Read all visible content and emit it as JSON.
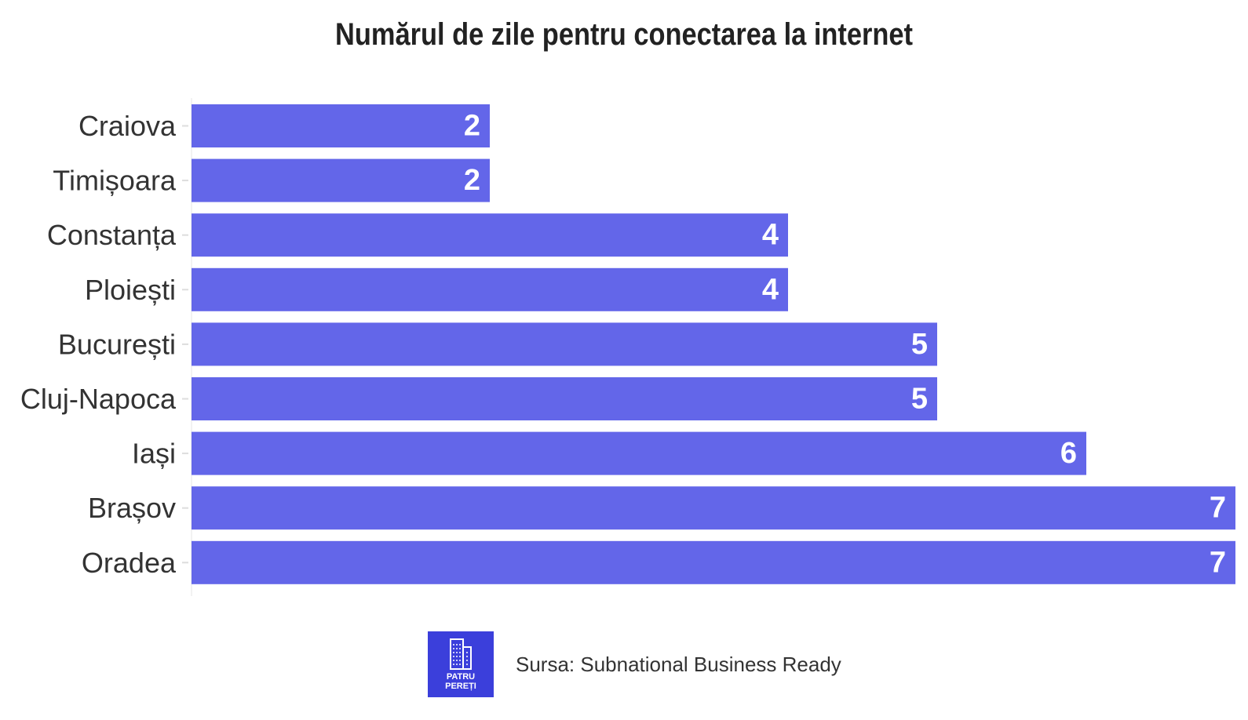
{
  "chart_data": {
    "type": "bar",
    "orientation": "horizontal",
    "title": "Numărul de zile pentru conectarea la internet",
    "categories": [
      "Craiova",
      "Timișoara",
      "Constanța",
      "Ploiești",
      "București",
      "Cluj-Napoca",
      "Iași",
      "Brașov",
      "Oradea"
    ],
    "values": [
      2,
      2,
      4,
      4,
      5,
      5,
      6,
      7,
      7
    ],
    "xlim": [
      0,
      7
    ],
    "grid": false,
    "data_labels": "inside-end",
    "bar_color": "#6366e9"
  },
  "footer": {
    "logo_line1": "PATRU",
    "logo_line2": "PEREȚI",
    "source": "Sursa: Subnational Business Ready"
  },
  "colors": {
    "logo_bg": "#3b3fdb"
  }
}
